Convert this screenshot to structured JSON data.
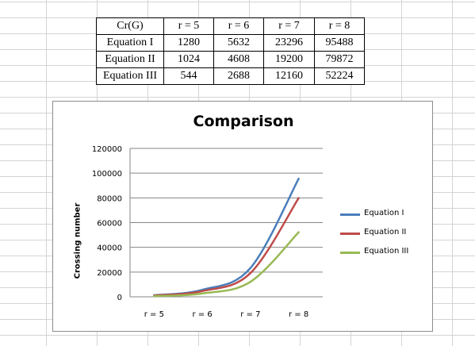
{
  "table": {
    "header": [
      "Cr(G)",
      "r = 5",
      "r = 6",
      "r = 7",
      "r = 8"
    ],
    "rows": [
      [
        "Equation I",
        "1280",
        "5632",
        "23296",
        "95488"
      ],
      [
        "Equation II",
        "1024",
        "4608",
        "19200",
        "79872"
      ],
      [
        "Equation III",
        "544",
        "2688",
        "12160",
        "52224"
      ]
    ]
  },
  "chart_data": {
    "type": "line",
    "title": "Comparison",
    "xlabel": "",
    "ylabel": "Crossing number",
    "categories": [
      "r = 5",
      "r = 6",
      "r = 7",
      "r = 8"
    ],
    "yticks": [
      "0",
      "20000",
      "40000",
      "60000",
      "80000",
      "100000",
      "120000"
    ],
    "ylim": [
      0,
      120000
    ],
    "grid": "horizontal",
    "legend_position": "right",
    "series": [
      {
        "name": "Equation I",
        "color": "#4a7ebb",
        "values": [
          1280,
          5632,
          23296,
          95488
        ]
      },
      {
        "name": "Equation II",
        "color": "#be4b48",
        "values": [
          1024,
          4608,
          19200,
          79872
        ]
      },
      {
        "name": "Equation III",
        "color": "#98b954",
        "values": [
          544,
          2688,
          12160,
          52224
        ]
      }
    ]
  }
}
